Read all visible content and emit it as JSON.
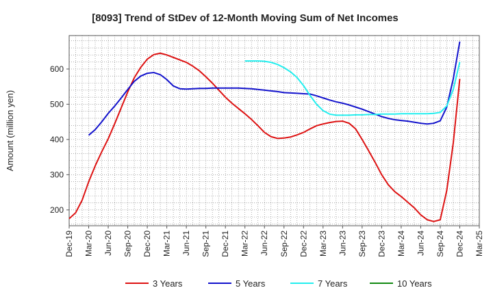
{
  "chart_data": {
    "type": "line",
    "title": "[8093]  Trend of StDev of 12-Month Moving Sum of Net Incomes",
    "ylabel": "Amount (million yen)",
    "xlabel": "",
    "x_ticks": [
      "Dec-19",
      "Mar-20",
      "Jun-20",
      "Sep-20",
      "Dec-20",
      "Mar-21",
      "Jun-21",
      "Sep-21",
      "Dec-21",
      "Mar-22",
      "Jun-22",
      "Sep-22",
      "Dec-22",
      "Mar-23",
      "Jun-23",
      "Sep-23",
      "Dec-23",
      "Mar-24",
      "Jun-24",
      "Sep-24",
      "Dec-24",
      "Mar-25"
    ],
    "y_ticks": [
      200,
      300,
      400,
      500,
      600
    ],
    "ylim": [
      155,
      695
    ],
    "xlim": [
      "Dec-19",
      "Mar-25"
    ],
    "grid": true,
    "legend": "bottom",
    "series": [
      {
        "name": "3 Years",
        "color": "#dd1111",
        "x": [
          "Dec-19",
          "Jan-20",
          "Feb-20",
          "Mar-20",
          "Apr-20",
          "May-20",
          "Jun-20",
          "Jul-20",
          "Aug-20",
          "Sep-20",
          "Oct-20",
          "Nov-20",
          "Dec-20",
          "Jan-21",
          "Feb-21",
          "Mar-21",
          "Apr-21",
          "May-21",
          "Jun-21",
          "Jul-21",
          "Aug-21",
          "Sep-21",
          "Oct-21",
          "Nov-21",
          "Dec-21",
          "Jan-22",
          "Feb-22",
          "Mar-22",
          "Apr-22",
          "May-22",
          "Jun-22",
          "Jul-22",
          "Aug-22",
          "Sep-22",
          "Oct-22",
          "Nov-22",
          "Dec-22",
          "Jan-23",
          "Feb-23",
          "Mar-23",
          "Apr-23",
          "May-23",
          "Jun-23",
          "Jul-23",
          "Aug-23",
          "Sep-23",
          "Oct-23",
          "Nov-23",
          "Dec-23",
          "Jan-24",
          "Feb-24",
          "Mar-24",
          "Apr-24",
          "May-24",
          "Jun-24",
          "Jul-24",
          "Aug-24",
          "Sep-24",
          "Oct-24",
          "Nov-24",
          "Dec-24"
        ],
        "values": [
          175,
          192,
          228,
          280,
          325,
          365,
          402,
          445,
          490,
          535,
          575,
          605,
          628,
          641,
          645,
          640,
          633,
          626,
          619,
          608,
          595,
          578,
          560,
          540,
          520,
          503,
          488,
          473,
          457,
          439,
          420,
          408,
          403,
          404,
          407,
          413,
          420,
          430,
          439,
          444,
          448,
          451,
          452,
          446,
          430,
          400,
          368,
          335,
          300,
          272,
          252,
          238,
          222,
          206,
          186,
          172,
          167,
          172,
          255,
          390,
          572
        ]
      },
      {
        "name": "5 Years",
        "color": "#1111cc",
        "x": [
          "Mar-20",
          "Apr-20",
          "May-20",
          "Jun-20",
          "Jul-20",
          "Aug-20",
          "Sep-20",
          "Oct-20",
          "Nov-20",
          "Dec-20",
          "Jan-21",
          "Feb-21",
          "Mar-21",
          "Apr-21",
          "May-21",
          "Jun-21",
          "Jul-21",
          "Aug-21",
          "Sep-21",
          "Oct-21",
          "Nov-21",
          "Dec-21",
          "Jan-22",
          "Feb-22",
          "Mar-22",
          "Apr-22",
          "May-22",
          "Jun-22",
          "Jul-22",
          "Aug-22",
          "Sep-22",
          "Oct-22",
          "Nov-22",
          "Dec-22",
          "Jan-23",
          "Feb-23",
          "Mar-23",
          "Apr-23",
          "May-23",
          "Jun-23",
          "Jul-23",
          "Aug-23",
          "Sep-23",
          "Oct-23",
          "Nov-23",
          "Dec-23",
          "Jan-24",
          "Feb-24",
          "Mar-24",
          "Apr-24",
          "May-24",
          "Jun-24",
          "Jul-24",
          "Aug-24",
          "Sep-24",
          "Oct-24",
          "Nov-24",
          "Dec-24"
        ],
        "values": [
          412,
          428,
          450,
          474,
          495,
          518,
          542,
          565,
          580,
          588,
          590,
          584,
          570,
          552,
          544,
          543,
          544,
          545,
          545,
          546,
          546,
          546,
          546,
          546,
          545,
          544,
          542,
          540,
          538,
          536,
          533,
          532,
          531,
          530,
          529,
          524,
          518,
          512,
          507,
          503,
          498,
          492,
          486,
          479,
          472,
          465,
          460,
          456,
          454,
          452,
          449,
          446,
          444,
          446,
          453,
          492,
          572,
          678
        ]
      },
      {
        "name": "7 Years",
        "color": "#22eeee",
        "x": [
          "Mar-22",
          "Apr-22",
          "May-22",
          "Jun-22",
          "Jul-22",
          "Aug-22",
          "Sep-22",
          "Oct-22",
          "Nov-22",
          "Dec-22",
          "Jan-23",
          "Feb-23",
          "Mar-23",
          "Apr-23",
          "May-23",
          "Jun-23",
          "Jul-23",
          "Aug-23",
          "Sep-23",
          "Oct-23",
          "Nov-23",
          "Dec-23",
          "Jan-24",
          "Feb-24",
          "Mar-24",
          "Apr-24",
          "May-24",
          "Jun-24",
          "Jul-24",
          "Aug-24",
          "Sep-24",
          "Oct-24",
          "Nov-24",
          "Dec-24"
        ],
        "values": [
          623,
          623,
          623,
          622,
          619,
          613,
          604,
          592,
          576,
          553,
          525,
          500,
          482,
          472,
          469,
          469,
          469,
          470,
          470,
          471,
          471,
          472,
          472,
          472,
          473,
          473,
          473,
          473,
          473,
          474,
          477,
          495,
          542,
          620
        ]
      },
      {
        "name": "10 Years",
        "color": "#118811",
        "x": [],
        "values": []
      }
    ]
  }
}
